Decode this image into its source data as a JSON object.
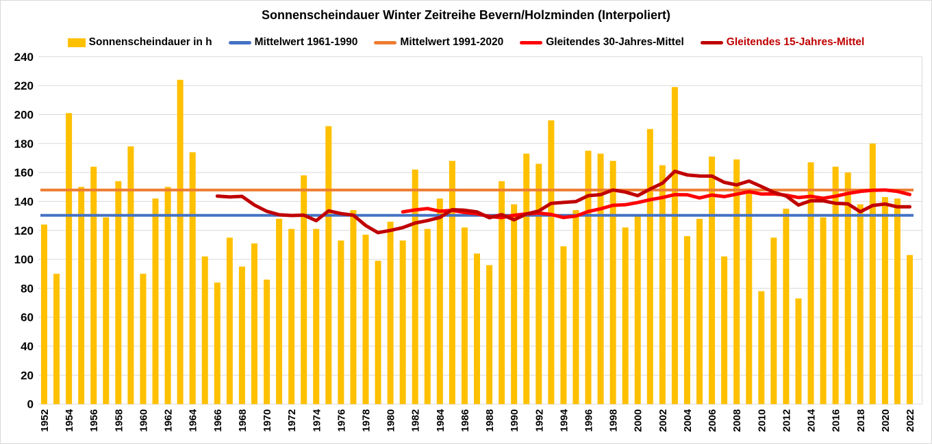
{
  "chart_data": {
    "type": "bar",
    "title": "Sonnenscheindauer Winter Zeitreihe Bevern/Holzminden (Interpoliert)",
    "first_year": 1952,
    "last_year": 2022,
    "x_tick_labels": [
      "1952",
      "1954",
      "1956",
      "1958",
      "1960",
      "1962",
      "1964",
      "1966",
      "1968",
      "1970",
      "1972",
      "1974",
      "1976",
      "1978",
      "1980",
      "1982",
      "1984",
      "1986",
      "1988",
      "1990",
      "1992",
      "1994",
      "1996",
      "1998",
      "2000",
      "2002",
      "2004",
      "2006",
      "2008",
      "2010",
      "2012",
      "2014",
      "2016",
      "2018",
      "2020",
      "2022"
    ],
    "y_axis": {
      "min": 0,
      "max": 240,
      "step": 20,
      "tick_labels": [
        "0",
        "20",
        "40",
        "60",
        "80",
        "100",
        "120",
        "140",
        "160",
        "180",
        "200",
        "220",
        "240"
      ]
    },
    "grid": true,
    "legend_position": "top",
    "series": [
      {
        "key": "sonnenscheindauer",
        "name": "Sonnenscheindauer in h",
        "type": "bar",
        "color": "#FFC000",
        "first_year": 1952,
        "values": [
          124,
          90,
          201,
          150,
          164,
          129,
          154,
          178,
          90,
          142,
          150,
          224,
          174,
          102,
          84,
          115,
          95,
          111,
          86,
          128,
          121,
          158,
          121,
          192,
          113,
          134,
          117,
          99,
          126,
          113,
          162,
          121,
          142,
          168,
          122,
          104,
          96,
          154,
          138,
          173,
          166,
          196,
          109,
          134,
          175,
          173,
          168,
          122,
          130,
          190,
          165,
          219,
          116,
          128,
          171,
          102,
          169,
          149,
          78,
          115,
          135,
          73,
          167,
          129,
          164,
          160,
          138,
          180,
          143,
          142,
          103
        ]
      },
      {
        "key": "mittelwert-1961-1990",
        "name": "Mittelwert 1961-1990",
        "type": "hline",
        "color": "#4472C4",
        "value": 130.4
      },
      {
        "key": "mittelwert-1991-2020",
        "name": "Mittelwert 1991-2020",
        "type": "hline",
        "color": "#ED7D31",
        "value": 147.9
      },
      {
        "key": "gleitendes-30-jahres-mittel",
        "name": "Gleitendes 30-Jahres-Mittel",
        "type": "line",
        "color": "#FF0000",
        "first_year": 1981,
        "values": [
          132.8,
          134.1,
          135.1,
          133.2,
          133.8,
          132.4,
          131.5,
          129.6,
          128.8,
          130.4,
          131.4,
          132.0,
          131.0,
          128.9,
          129.9,
          133.0,
          134.9,
          137.3,
          137.7,
          139.2,
          141.2,
          142.7,
          144.7,
          144.6,
          142.4,
          144.4,
          143.3,
          145.0,
          146.7,
          145.1,
          145.2,
          144.3,
          142.7,
          143.5,
          142.2,
          143.6,
          145.5,
          146.9,
          147.7,
          147.9,
          146.9,
          144.8
        ]
      },
      {
        "key": "gleitendes-15-jahres-mittel",
        "name": "Gleitendes 15-Jahres-Mittel",
        "type": "line",
        "color": "#C00000",
        "first_year": 1966,
        "values": [
          143.7,
          143.1,
          143.5,
          137.5,
          133.2,
          130.8,
          130.3,
          130.5,
          126.7,
          133.5,
          131.6,
          130.5,
          123.4,
          118.4,
          120.0,
          121.9,
          125.1,
          126.8,
          128.9,
          134.3,
          133.9,
          132.8,
          128.7,
          130.9,
          127.3,
          131.3,
          133.4,
          138.7,
          139.3,
          139.9,
          144.0,
          144.7,
          147.9,
          146.5,
          144.0,
          148.5,
          152.6,
          160.8,
          158.3,
          157.6,
          157.5,
          153.2,
          151.4,
          154.1,
          150.3,
          146.3,
          143.8,
          137.5,
          140.5,
          140.4,
          138.7,
          138.3,
          132.9,
          137.2,
          138.2,
          136.3,
          136.3
        ]
      }
    ],
    "legend": [
      {
        "key": "sonnenscheindauer",
        "label": "Sonnenscheindauer in h",
        "swatch": "bar",
        "color": "#FFC000",
        "label_color": "#000000"
      },
      {
        "key": "mittelwert-1961-1990",
        "label": "Mittelwert 1961-1990",
        "swatch": "line",
        "color": "#4472C4",
        "label_color": "#000000"
      },
      {
        "key": "mittelwert-1991-2020",
        "label": "Mittelwert 1991-2020",
        "swatch": "line",
        "color": "#ED7D31",
        "label_color": "#000000"
      },
      {
        "key": "gleitendes-30-jahres-mittel",
        "label": "Gleitendes 30-Jahres-Mittel",
        "swatch": "line",
        "color": "#FF0000",
        "label_color": "#000000"
      },
      {
        "key": "gleitendes-15-jahres-mittel",
        "label": "Gleitendes 15-Jahres-Mittel",
        "swatch": "line",
        "color": "#C00000",
        "label_color": "#C00000"
      }
    ],
    "colors": {
      "bar": "#FFC000",
      "mean_1961_1990": "#4472C4",
      "mean_1991_2020": "#ED7D31",
      "mov30": "#FF0000",
      "mov15": "#C00000",
      "gridline": "#D9D9D9",
      "text": "#000000",
      "background": "#FFFFFF"
    }
  }
}
